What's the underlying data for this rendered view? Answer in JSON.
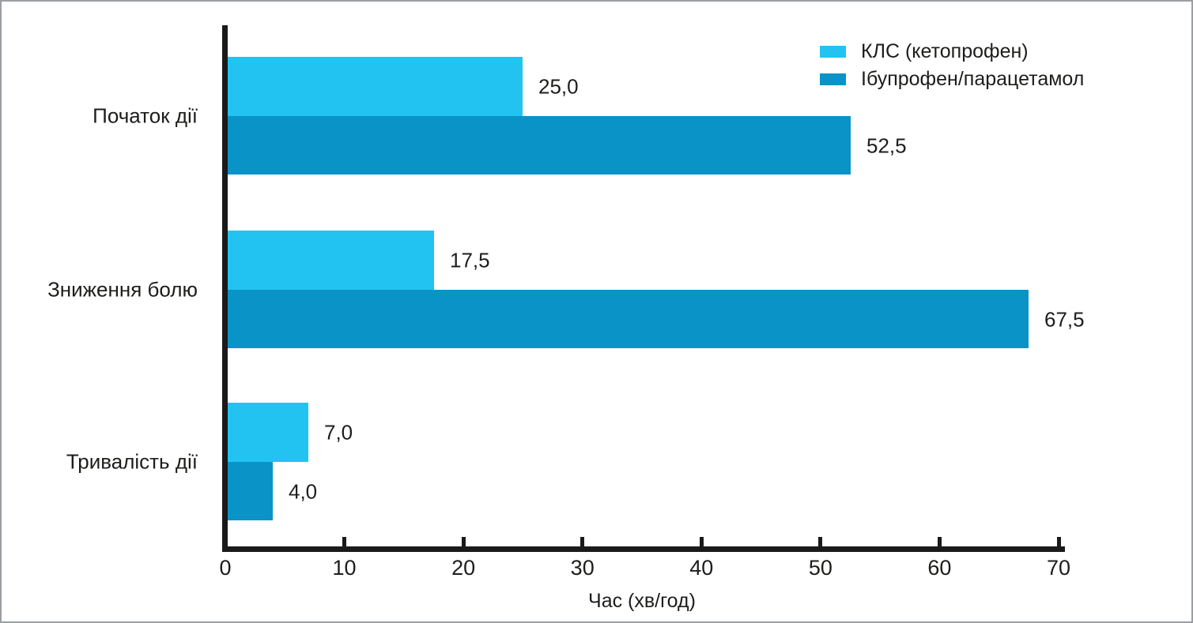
{
  "chart_data": {
    "type": "bar",
    "orientation": "horizontal",
    "title": "",
    "xlabel": "Час (хв/год)",
    "ylabel": "",
    "xlim": [
      0,
      70
    ],
    "xticks": [
      "0",
      "10",
      "20",
      "30",
      "40",
      "50",
      "60",
      "70"
    ],
    "grid": false,
    "legend_position": "top-right",
    "categories": [
      "Початок дії",
      "Зниження болю",
      "Тривалість дії"
    ],
    "series": [
      {
        "name": "КЛС (кетопрофен)",
        "color": "#22c3f1",
        "values": [
          25.0,
          17.5,
          7.0
        ],
        "value_labels": [
          "25,0",
          "17,5",
          "7,0"
        ]
      },
      {
        "name": "Ібупрофен/парацетамол",
        "color": "#0a93c7",
        "values": [
          52.5,
          67.5,
          4.0
        ],
        "value_labels": [
          "52,5",
          "67,5",
          "4,0"
        ]
      }
    ]
  },
  "colors": {
    "axis": "#1a1a1a",
    "text": "#1d1d1b",
    "frame_border": "#9a9fa4",
    "background": "#ffffff"
  }
}
